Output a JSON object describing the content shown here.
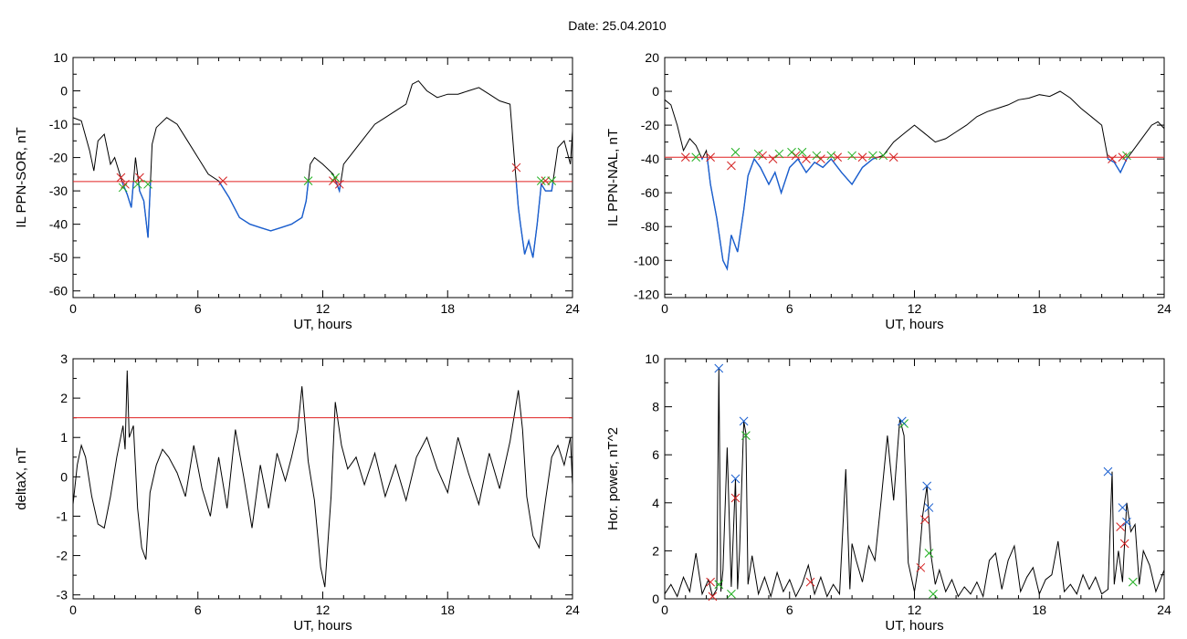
{
  "figure": {
    "title": "Date:  25.04.2010"
  },
  "colors": {
    "trace": "#000000",
    "below_threshold_trace": "#1a5fd0",
    "threshold_line": "#e02020",
    "marker_red": "#d42020",
    "marker_green": "#20b020",
    "marker_blue": "#1a5fd0"
  },
  "chart_data": [
    {
      "type": "line",
      "ylabel": "IL PPN-SOR, nT",
      "xlabel": "UT, hours",
      "xlim": [
        0,
        24
      ],
      "ylim": [
        -62,
        10
      ],
      "xticks": [
        0,
        6,
        12,
        18,
        24
      ],
      "yticks": [
        10,
        0,
        -10,
        -20,
        -30,
        -40,
        -50,
        -60
      ],
      "threshold": -27.2,
      "grid": false,
      "series": [
        {
          "x": [
            0,
            0.4,
            0.8,
            1.0,
            1.2,
            1.5,
            1.8,
            2.0,
            2.2,
            2.4,
            2.6,
            2.8,
            3.0,
            3.2,
            3.4,
            3.6,
            3.8,
            4.0,
            4.5,
            5.0,
            5.5,
            6.0,
            6.5,
            7.0,
            7.5,
            8.0,
            8.5,
            9.0,
            9.5,
            10.0,
            10.5,
            11.0,
            11.2,
            11.4,
            11.6,
            12.0,
            12.5,
            12.8,
            13.0,
            13.5,
            14.0,
            14.5,
            15.0,
            15.5,
            16.0,
            16.3,
            16.6,
            17.0,
            17.5,
            18.0,
            18.5,
            19.0,
            19.5,
            20.0,
            20.5,
            21.0,
            21.2,
            21.4,
            21.5,
            21.7,
            21.9,
            22.1,
            22.3,
            22.5,
            22.7,
            23.0,
            23.3,
            23.6,
            23.9,
            24.0
          ],
          "y": [
            -8,
            -9,
            -18,
            -24,
            -15,
            -13,
            -22,
            -20,
            -24,
            -28,
            -31,
            -35,
            -20,
            -30,
            -33,
            -44,
            -16,
            -11,
            -8,
            -10,
            -15,
            -20,
            -25,
            -27,
            -32,
            -38,
            -40,
            -41,
            -42,
            -41,
            -40,
            -38,
            -33,
            -22,
            -20,
            -22,
            -25,
            -30,
            -22,
            -18,
            -14,
            -10,
            -8,
            -6,
            -4,
            2,
            3,
            0,
            -2,
            -1,
            -1,
            0,
            1,
            -1,
            -3,
            -4,
            -20,
            -35,
            -40,
            -49,
            -45,
            -50,
            -40,
            -28,
            -30,
            -30,
            -17,
            -15,
            -22,
            -12
          ]
        }
      ],
      "markers_red": [
        [
          2.3,
          -26
        ],
        [
          2.5,
          -28
        ],
        [
          3.2,
          -26
        ],
        [
          7.2,
          -27
        ],
        [
          12.5,
          -27
        ],
        [
          12.8,
          -28
        ],
        [
          21.3,
          -23
        ],
        [
          22.7,
          -27
        ]
      ],
      "markers_green": [
        [
          2.4,
          -29
        ],
        [
          3.1,
          -28
        ],
        [
          3.6,
          -28
        ],
        [
          11.3,
          -27
        ],
        [
          12.6,
          -26
        ],
        [
          22.5,
          -27
        ],
        [
          23.0,
          -27
        ]
      ]
    },
    {
      "type": "line",
      "ylabel": "IL PPN-NAL, nT",
      "xlabel": "UT, hours",
      "xlim": [
        0,
        24
      ],
      "ylim": [
        -122,
        20
      ],
      "xticks": [
        0,
        6,
        12,
        18,
        24
      ],
      "yticks": [
        20,
        0,
        -20,
        -40,
        -60,
        -80,
        -100,
        -120
      ],
      "threshold": -39,
      "grid": false,
      "series": [
        {
          "x": [
            0,
            0.3,
            0.6,
            0.9,
            1.2,
            1.5,
            1.8,
            2.0,
            2.2,
            2.5,
            2.8,
            3.0,
            3.2,
            3.5,
            3.8,
            4.0,
            4.3,
            4.6,
            5.0,
            5.3,
            5.6,
            6.0,
            6.4,
            6.8,
            7.2,
            7.6,
            8.0,
            8.5,
            9.0,
            9.5,
            10.0,
            10.5,
            11.0,
            11.5,
            12.0,
            12.5,
            13.0,
            13.5,
            14.0,
            14.5,
            15.0,
            15.5,
            16.0,
            16.5,
            17.0,
            17.5,
            18.0,
            18.5,
            19.0,
            19.5,
            20.0,
            20.5,
            21.0,
            21.3,
            21.6,
            21.9,
            22.2,
            22.5,
            22.8,
            23.1,
            23.4,
            23.7,
            24.0
          ],
          "y": [
            -5,
            -8,
            -20,
            -35,
            -28,
            -32,
            -40,
            -35,
            -55,
            -75,
            -100,
            -105,
            -85,
            -95,
            -70,
            -50,
            -40,
            -45,
            -55,
            -48,
            -60,
            -45,
            -40,
            -48,
            -42,
            -45,
            -40,
            -48,
            -55,
            -45,
            -40,
            -38,
            -30,
            -25,
            -20,
            -25,
            -30,
            -28,
            -24,
            -20,
            -15,
            -12,
            -10,
            -8,
            -5,
            -4,
            -2,
            -3,
            0,
            -4,
            -10,
            -15,
            -20,
            -40,
            -42,
            -48,
            -40,
            -35,
            -30,
            -25,
            -20,
            -18,
            -22
          ]
        }
      ],
      "markers_red": [
        [
          1.0,
          -39
        ],
        [
          2.2,
          -39
        ],
        [
          3.2,
          -44
        ],
        [
          4.7,
          -38
        ],
        [
          5.2,
          -40
        ],
        [
          6.3,
          -38
        ],
        [
          6.8,
          -40
        ],
        [
          7.5,
          -40
        ],
        [
          8.3,
          -39
        ],
        [
          9.5,
          -39
        ],
        [
          11.0,
          -39
        ],
        [
          21.5,
          -40
        ],
        [
          22.0,
          -39
        ]
      ],
      "markers_green": [
        [
          1.5,
          -39
        ],
        [
          3.4,
          -36
        ],
        [
          4.5,
          -37
        ],
        [
          5.5,
          -37
        ],
        [
          6.1,
          -36
        ],
        [
          6.6,
          -36
        ],
        [
          7.3,
          -38
        ],
        [
          8.0,
          -38
        ],
        [
          9.0,
          -38
        ],
        [
          10.0,
          -38
        ],
        [
          10.5,
          -38
        ],
        [
          22.2,
          -38
        ]
      ]
    },
    {
      "type": "line",
      "ylabel": "deltaX, nT",
      "xlabel": "UT, hours",
      "xlim": [
        0,
        24
      ],
      "ylim": [
        -3.1,
        3
      ],
      "xticks": [
        0,
        6,
        12,
        18,
        24
      ],
      "yticks": [
        3,
        2,
        1,
        0,
        -1,
        -2,
        -3
      ],
      "threshold": 1.5,
      "grid": false,
      "series": [
        {
          "x": [
            0,
            0.2,
            0.4,
            0.6,
            0.9,
            1.2,
            1.5,
            1.8,
            2.1,
            2.4,
            2.5,
            2.6,
            2.7,
            2.9,
            3.1,
            3.3,
            3.5,
            3.7,
            4.0,
            4.3,
            4.6,
            5.0,
            5.4,
            5.8,
            6.2,
            6.6,
            7.0,
            7.4,
            7.8,
            8.2,
            8.6,
            9.0,
            9.4,
            9.8,
            10.2,
            10.5,
            10.8,
            11.0,
            11.3,
            11.6,
            11.9,
            12.1,
            12.4,
            12.6,
            12.9,
            13.2,
            13.6,
            14.0,
            14.5,
            15.0,
            15.5,
            16.0,
            16.5,
            17.0,
            17.5,
            18.0,
            18.5,
            19.0,
            19.5,
            20.0,
            20.5,
            21.0,
            21.4,
            21.6,
            21.8,
            22.1,
            22.4,
            22.7,
            23.0,
            23.3,
            23.6,
            23.9,
            24.0
          ],
          "y": [
            -0.7,
            0.3,
            0.8,
            0.5,
            -0.5,
            -1.2,
            -1.3,
            -0.5,
            0.5,
            1.3,
            0.7,
            2.7,
            1.0,
            1.3,
            -0.8,
            -1.8,
            -2.1,
            -0.4,
            0.3,
            0.7,
            0.5,
            0.1,
            -0.5,
            0.8,
            -0.3,
            -1.0,
            0.5,
            -0.8,
            1.2,
            0.0,
            -1.3,
            0.3,
            -0.8,
            0.6,
            -0.1,
            0.5,
            1.2,
            2.3,
            0.4,
            -0.6,
            -2.3,
            -2.8,
            -0.5,
            1.9,
            0.8,
            0.2,
            0.5,
            -0.2,
            0.6,
            -0.5,
            0.3,
            -0.6,
            0.5,
            1.0,
            0.2,
            -0.4,
            1.0,
            0.1,
            -0.7,
            0.6,
            -0.3,
            0.9,
            2.2,
            1.2,
            -0.5,
            -1.5,
            -1.8,
            -0.6,
            0.5,
            0.8,
            0.3,
            1.0,
            -0.2
          ]
        }
      ],
      "markers_red": [],
      "markers_green": []
    },
    {
      "type": "line",
      "ylabel": "Hor. power, nT^2",
      "xlabel": "UT, hours",
      "xlim": [
        0,
        24
      ],
      "ylim": [
        0,
        10
      ],
      "xticks": [
        0,
        6,
        12,
        18,
        24
      ],
      "yticks": [
        0,
        2,
        4,
        6,
        8,
        10
      ],
      "grid": false,
      "series": [
        {
          "x": [
            0,
            0.3,
            0.6,
            0.9,
            1.2,
            1.5,
            1.8,
            2.1,
            2.3,
            2.5,
            2.6,
            2.7,
            2.8,
            3.0,
            3.2,
            3.4,
            3.5,
            3.6,
            3.8,
            3.9,
            4.0,
            4.2,
            4.5,
            4.8,
            5.1,
            5.4,
            5.7,
            6.0,
            6.3,
            6.6,
            6.9,
            7.2,
            7.5,
            7.8,
            8.1,
            8.4,
            8.7,
            8.9,
            9.0,
            9.2,
            9.5,
            9.8,
            10.1,
            10.4,
            10.7,
            11.0,
            11.3,
            11.5,
            11.7,
            12.0,
            12.2,
            12.4,
            12.6,
            12.8,
            13.0,
            13.2,
            13.5,
            13.8,
            14.1,
            14.4,
            14.7,
            15.0,
            15.3,
            15.6,
            15.9,
            16.2,
            16.5,
            16.8,
            17.1,
            17.4,
            17.7,
            18.0,
            18.3,
            18.6,
            18.9,
            19.2,
            19.5,
            19.8,
            20.1,
            20.4,
            20.7,
            21.0,
            21.3,
            21.5,
            21.6,
            21.8,
            22.0,
            22.2,
            22.4,
            22.6,
            22.8,
            23.0,
            23.3,
            23.6,
            24.0
          ],
          "y": [
            0.2,
            0.6,
            0.1,
            0.9,
            0.3,
            1.9,
            0.2,
            0.8,
            0.1,
            0.4,
            9.6,
            0.3,
            1.2,
            6.3,
            0.5,
            5.0,
            0.4,
            2.0,
            7.4,
            6.9,
            0.6,
            1.8,
            0.2,
            0.9,
            0.1,
            1.1,
            0.3,
            0.8,
            0.1,
            0.6,
            1.4,
            0.2,
            0.9,
            0.1,
            0.6,
            0.2,
            5.4,
            0.4,
            2.3,
            1.6,
            0.7,
            2.2,
            1.6,
            4.1,
            6.8,
            4.1,
            7.5,
            6.8,
            1.5,
            0.3,
            1.4,
            3.5,
            4.7,
            1.8,
            0.6,
            1.2,
            0.3,
            0.8,
            0.1,
            0.5,
            0.2,
            0.7,
            0.1,
            1.6,
            1.9,
            0.4,
            1.6,
            2.2,
            0.3,
            0.9,
            1.3,
            0.2,
            0.8,
            1.0,
            2.4,
            0.3,
            0.6,
            0.2,
            1.0,
            0.4,
            0.9,
            0.2,
            0.4,
            5.3,
            0.6,
            2.0,
            0.7,
            4.0,
            2.8,
            3.1,
            0.6,
            2.0,
            1.4,
            0.3,
            1.2
          ]
        }
      ],
      "markers_red": [
        [
          2.2,
          0.7
        ],
        [
          2.3,
          0.1
        ],
        [
          3.4,
          4.2
        ],
        [
          7.0,
          0.7
        ],
        [
          12.3,
          1.3
        ],
        [
          12.5,
          3.3
        ],
        [
          21.9,
          3.0
        ],
        [
          22.1,
          2.3
        ]
      ],
      "markers_green": [
        [
          2.6,
          0.6
        ],
        [
          3.2,
          0.2
        ],
        [
          3.9,
          6.8
        ],
        [
          11.5,
          7.3
        ],
        [
          12.7,
          1.9
        ],
        [
          12.9,
          0.2
        ],
        [
          22.5,
          0.7
        ]
      ],
      "markers_blue": [
        [
          2.6,
          9.6
        ],
        [
          3.4,
          5.0
        ],
        [
          3.8,
          7.4
        ],
        [
          11.4,
          7.4
        ],
        [
          12.6,
          4.7
        ],
        [
          12.7,
          3.8
        ],
        [
          21.3,
          5.3
        ],
        [
          22.0,
          3.8
        ],
        [
          22.2,
          3.2
        ]
      ]
    }
  ]
}
